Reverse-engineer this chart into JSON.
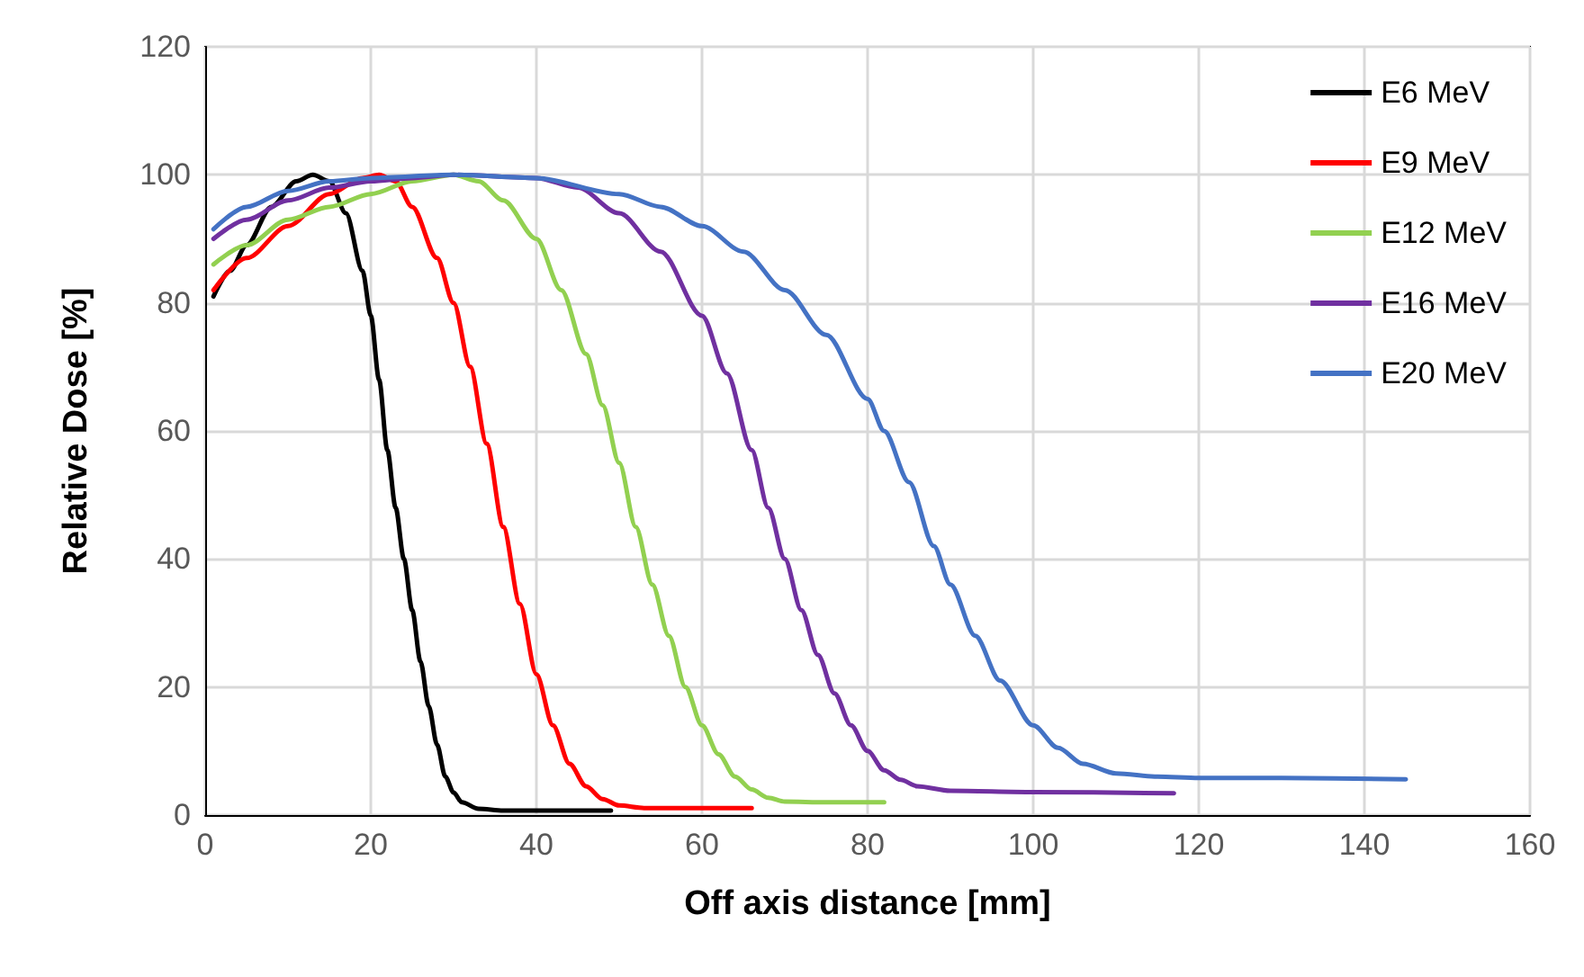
{
  "chart_data": {
    "type": "line",
    "xlabel": "Off axis distance [mm]",
    "ylabel": "Relative Dose [%]",
    "xlim": [
      0,
      160
    ],
    "xticks": [
      0,
      20,
      40,
      60,
      80,
      100,
      120,
      140,
      160
    ],
    "ylim": [
      0,
      120
    ],
    "yticks": [
      0,
      20,
      40,
      60,
      80,
      100,
      120
    ],
    "grid": true,
    "legend": "right",
    "marker": "none",
    "line_style": "solid",
    "series": [
      {
        "name": "E6 MeV",
        "color": "#000000",
        "x": [
          1,
          3,
          5,
          8,
          11,
          13,
          15,
          17,
          19,
          20,
          21,
          22,
          23,
          24,
          25,
          26,
          27,
          28,
          29,
          30,
          31,
          33,
          36,
          49
        ],
        "values": [
          81,
          85,
          89,
          95,
          99,
          100,
          99,
          94,
          85,
          78,
          68,
          57,
          48,
          40,
          32,
          24,
          17,
          11,
          6,
          3.5,
          2,
          1,
          0.7,
          0.7
        ]
      },
      {
        "name": "E9 MeV",
        "color": "#ff0000",
        "x": [
          1,
          5,
          10,
          15,
          19,
          21,
          23,
          25,
          28,
          30,
          32,
          34,
          36,
          38,
          40,
          42,
          44,
          46,
          48,
          50,
          53,
          66
        ],
        "values": [
          82,
          87,
          92,
          97,
          99.5,
          100,
          99,
          95,
          87,
          80,
          70,
          58,
          45,
          33,
          22,
          14,
          8,
          4.5,
          2.5,
          1.5,
          1.1,
          1.1
        ]
      },
      {
        "name": "E12 MeV",
        "color": "#92d050",
        "x": [
          1,
          5,
          10,
          15,
          20,
          25,
          30,
          33,
          36,
          40,
          43,
          46,
          48,
          50,
          52,
          54,
          56,
          58,
          60,
          62,
          64,
          66,
          68,
          70,
          75,
          82
        ],
        "values": [
          86,
          89,
          93,
          95,
          97,
          99,
          100,
          99,
          96,
          90,
          82,
          72,
          64,
          55,
          45,
          36,
          28,
          20,
          14,
          9.5,
          6,
          4,
          2.7,
          2.1,
          2,
          2
        ]
      },
      {
        "name": "E16 MeV",
        "color": "#7030a0",
        "x": [
          1,
          5,
          10,
          15,
          20,
          25,
          30,
          40,
          45,
          50,
          55,
          60,
          63,
          66,
          68,
          70,
          72,
          74,
          76,
          78,
          80,
          82,
          84,
          86,
          90,
          100,
          117
        ],
        "values": [
          90,
          93,
          96,
          98,
          99,
          99.5,
          100,
          99.5,
          98,
          94,
          88,
          78,
          69,
          57,
          48,
          40,
          32,
          25,
          19,
          14,
          10,
          7,
          5.5,
          4.5,
          3.8,
          3.6,
          3.4
        ]
      },
      {
        "name": "E20 MeV",
        "color": "#4472c4",
        "x": [
          1,
          5,
          10,
          15,
          20,
          30,
          40,
          50,
          55,
          60,
          65,
          70,
          75,
          80,
          82,
          85,
          88,
          90,
          93,
          96,
          100,
          103,
          106,
          110,
          115,
          120,
          130,
          145
        ],
        "values": [
          91.5,
          95,
          97.5,
          99,
          99.5,
          100,
          99.5,
          97,
          95,
          92,
          88,
          82,
          75,
          65,
          60,
          52,
          42,
          36,
          28,
          21,
          14,
          10.5,
          8,
          6.5,
          6,
          5.8,
          5.8,
          5.6
        ]
      }
    ]
  }
}
